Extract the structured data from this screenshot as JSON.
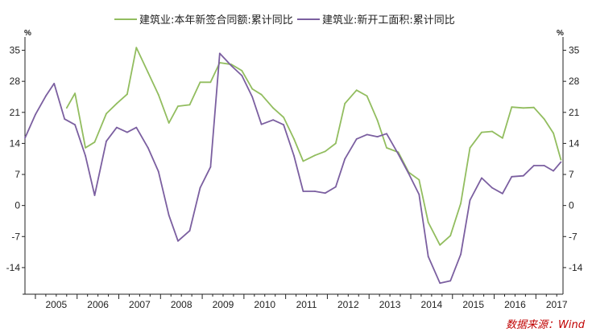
{
  "chart_data": {
    "type": "line",
    "title": "",
    "unit_left": "%",
    "unit_right": "%",
    "source": "数据来源：Wind",
    "x_range": [
      2004.75,
      2017.65
    ],
    "y_range": [
      -20,
      38
    ],
    "y_ticks": [
      35,
      28,
      21,
      14,
      7,
      0,
      -7,
      -14
    ],
    "x_tick_labels": [
      "2005",
      "2006",
      "2007",
      "2008",
      "2009",
      "2010",
      "2011",
      "2012",
      "2013",
      "2014",
      "2015",
      "2016",
      "2017"
    ],
    "grid": false,
    "legend_position": "top",
    "series": [
      {
        "name": "建筑业:本年新签合同额:累计同比",
        "color": "#92bd5f",
        "points": [
          [
            2005.75,
            22
          ],
          [
            2005.95,
            25.3
          ],
          [
            2006.2,
            13
          ],
          [
            2006.42,
            14.3
          ],
          [
            2006.7,
            20.7
          ],
          [
            2006.95,
            23
          ],
          [
            2007.2,
            25.1
          ],
          [
            2007.42,
            35.6
          ],
          [
            2007.7,
            30
          ],
          [
            2007.95,
            25
          ],
          [
            2008.2,
            18.6
          ],
          [
            2008.42,
            22.4
          ],
          [
            2008.7,
            22.7
          ],
          [
            2008.95,
            27.8
          ],
          [
            2009.2,
            27.8
          ],
          [
            2009.42,
            32.2
          ],
          [
            2009.7,
            31.8
          ],
          [
            2009.95,
            30.4
          ],
          [
            2010.2,
            26.3
          ],
          [
            2010.42,
            25
          ],
          [
            2010.7,
            22
          ],
          [
            2010.95,
            19.9
          ],
          [
            2011.2,
            15
          ],
          [
            2011.42,
            10
          ],
          [
            2011.7,
            11.3
          ],
          [
            2011.95,
            12.2
          ],
          [
            2012.2,
            14
          ],
          [
            2012.42,
            23
          ],
          [
            2012.7,
            26
          ],
          [
            2012.95,
            24.7
          ],
          [
            2013.2,
            19.2
          ],
          [
            2013.42,
            13
          ],
          [
            2013.7,
            12
          ],
          [
            2013.95,
            7.5
          ],
          [
            2014.2,
            5.8
          ],
          [
            2014.42,
            -3.8
          ],
          [
            2014.7,
            -8.9
          ],
          [
            2014.95,
            -6.8
          ],
          [
            2015.2,
            0.5
          ],
          [
            2015.42,
            13
          ],
          [
            2015.7,
            16.5
          ],
          [
            2015.95,
            16.7
          ],
          [
            2016.2,
            15.2
          ],
          [
            2016.42,
            22.2
          ],
          [
            2016.7,
            22
          ],
          [
            2016.95,
            22.1
          ],
          [
            2017.2,
            19.5
          ],
          [
            2017.42,
            16.3
          ],
          [
            2017.6,
            10.3
          ]
        ]
      },
      {
        "name": "建筑业:新开工面积:累计同比",
        "color": "#7b5fa0",
        "points": [
          [
            2004.75,
            15.2
          ],
          [
            2005.0,
            20.5
          ],
          [
            2005.25,
            24.7
          ],
          [
            2005.45,
            27.5
          ],
          [
            2005.7,
            19.5
          ],
          [
            2005.95,
            18.2
          ],
          [
            2006.2,
            11.2
          ],
          [
            2006.42,
            2.3
          ],
          [
            2006.7,
            14.5
          ],
          [
            2006.95,
            17.6
          ],
          [
            2007.2,
            16.5
          ],
          [
            2007.42,
            17.6
          ],
          [
            2007.7,
            13
          ],
          [
            2007.95,
            7.7
          ],
          [
            2008.2,
            -2.2
          ],
          [
            2008.42,
            -8
          ],
          [
            2008.7,
            -5.7
          ],
          [
            2008.95,
            4
          ],
          [
            2009.2,
            8.7
          ],
          [
            2009.42,
            34.3
          ],
          [
            2009.7,
            31.5
          ],
          [
            2009.95,
            29.3
          ],
          [
            2010.2,
            24.5
          ],
          [
            2010.42,
            18.3
          ],
          [
            2010.7,
            19.3
          ],
          [
            2010.95,
            18.2
          ],
          [
            2011.2,
            11.2
          ],
          [
            2011.42,
            3.2
          ],
          [
            2011.7,
            3.2
          ],
          [
            2011.95,
            2.8
          ],
          [
            2012.2,
            4.2
          ],
          [
            2012.42,
            10.5
          ],
          [
            2012.7,
            15
          ],
          [
            2012.95,
            16
          ],
          [
            2013.2,
            15.5
          ],
          [
            2013.42,
            16.2
          ],
          [
            2013.7,
            11.6
          ],
          [
            2013.95,
            7.2
          ],
          [
            2014.2,
            2.5
          ],
          [
            2014.42,
            -11.5
          ],
          [
            2014.7,
            -17.5
          ],
          [
            2014.95,
            -17
          ],
          [
            2015.2,
            -11
          ],
          [
            2015.42,
            1.2
          ],
          [
            2015.7,
            6.2
          ],
          [
            2015.95,
            4
          ],
          [
            2016.2,
            2.7
          ],
          [
            2016.42,
            6.5
          ],
          [
            2016.7,
            6.7
          ],
          [
            2016.95,
            9
          ],
          [
            2017.2,
            9
          ],
          [
            2017.42,
            7.8
          ],
          [
            2017.6,
            9.8
          ]
        ]
      }
    ]
  }
}
